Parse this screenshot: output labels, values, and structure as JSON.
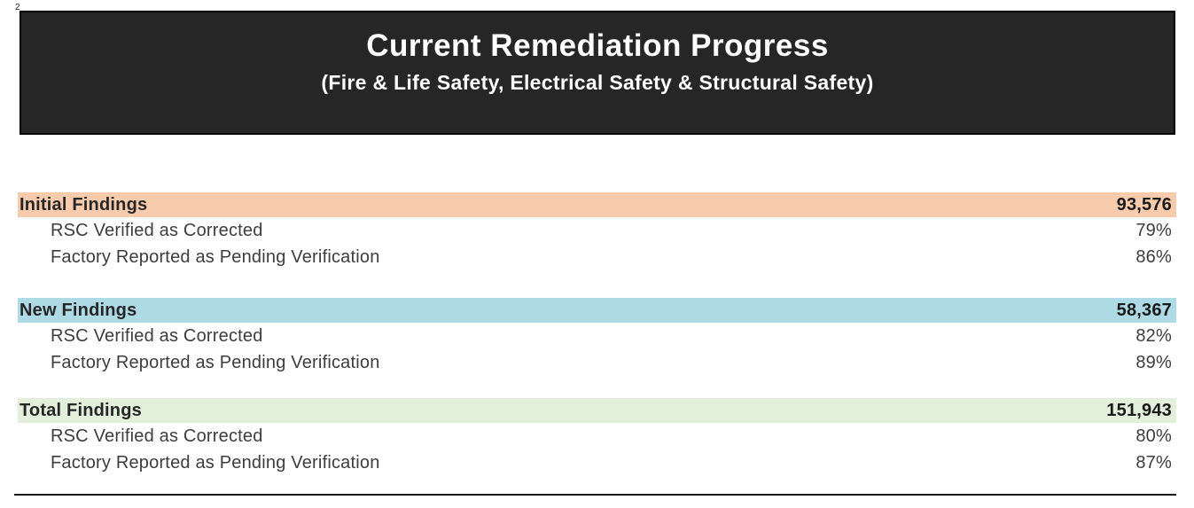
{
  "page_number": "2",
  "header": {
    "title": "Current Remediation Progress",
    "subtitle": "(Fire & Life Safety, Electrical Safety & Structural Safety)",
    "bg_color": "#262626",
    "border_color": "#000000",
    "text_color": "#ffffff"
  },
  "sections": [
    {
      "label": "Initial Findings",
      "value": "93,576",
      "band_color": "#F8CBAD",
      "rows": [
        {
          "label": "RSC Verified as Corrected",
          "value": "79%"
        },
        {
          "label": "Factory Reported as Pending Verification",
          "value": "86%"
        }
      ]
    },
    {
      "label": "New Findings",
      "value": "58,367",
      "band_color": "#AEDAE6",
      "rows": [
        {
          "label": "RSC Verified as Corrected",
          "value": "82%"
        },
        {
          "label": "Factory Reported as Pending Verification",
          "value": "89%"
        }
      ]
    },
    {
      "label": "Total Findings",
      "value": "151,943",
      "band_color": "#E2EFDA",
      "rows": [
        {
          "label": "RSC Verified as Corrected",
          "value": "80%"
        },
        {
          "label": "Factory Reported as Pending Verification",
          "value": "87%"
        }
      ]
    }
  ]
}
